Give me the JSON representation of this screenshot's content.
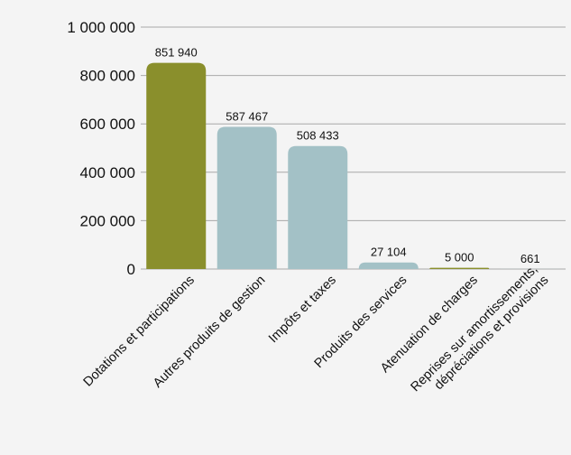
{
  "chart_data": {
    "type": "bar",
    "title": "",
    "xlabel": "",
    "ylabel": "",
    "ylim": [
      0,
      1000000
    ],
    "yticks": [
      0,
      200000,
      400000,
      600000,
      800000,
      1000000
    ],
    "ytick_labels": [
      "0",
      "200 000",
      "400 000",
      "600 000",
      "800 000",
      "1 000 000"
    ],
    "grid": true,
    "legend": "none",
    "categories": [
      [
        "Dotations et participations"
      ],
      [
        "Autres produits de gestion"
      ],
      [
        "Impôts et taxes"
      ],
      [
        "Produits des services"
      ],
      [
        "Atenuation de charges"
      ],
      [
        "Reprises sur amortissements,",
        "dépréciations et provisions"
      ]
    ],
    "values": [
      851940,
      587467,
      508433,
      27104,
      5000,
      661
    ],
    "data_labels": [
      "851 940",
      "587 467",
      "508 433",
      "27 104",
      "5 000",
      "661"
    ],
    "colors": {
      "highlight": "#8a8f2c",
      "default": "#a3c1c6",
      "background": "#f4f4f4",
      "grid": "#a8a8a8",
      "text": "#111111"
    },
    "bar_colors": [
      "highlight",
      "default",
      "default",
      "default",
      "highlight",
      "default"
    ]
  }
}
